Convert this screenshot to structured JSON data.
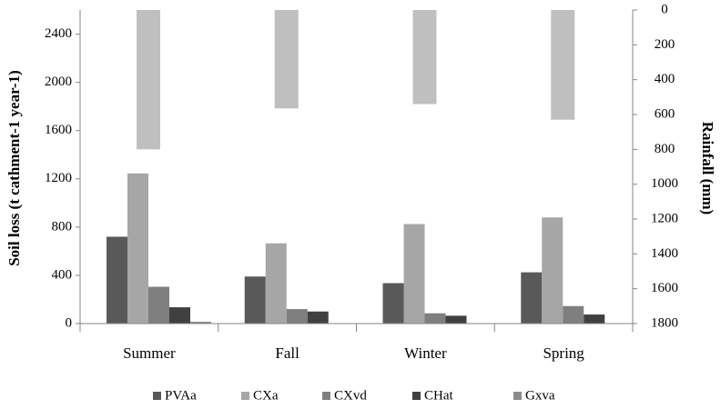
{
  "chart_data": {
    "type": "bar",
    "categories": [
      "Summer",
      "Fall",
      "Winter",
      "Spring"
    ],
    "series": [
      {
        "name": "PVAa",
        "color": "#595959",
        "values": [
          720,
          390,
          335,
          425
        ]
      },
      {
        "name": "CXa",
        "color": "#a6a6a6",
        "values": [
          1245,
          665,
          825,
          880
        ]
      },
      {
        "name": "CXvd",
        "color": "#7f7f7f",
        "values": [
          305,
          120,
          85,
          145
        ]
      },
      {
        "name": "CHat",
        "color": "#404040",
        "values": [
          135,
          100,
          65,
          75
        ]
      },
      {
        "name": "Gxva",
        "color": "#8c8c8c",
        "values": [
          15,
          0,
          0,
          0
        ]
      }
    ],
    "rainfall": {
      "name": "Rainfall",
      "color": "#bfbfbf",
      "values": [
        800,
        565,
        540,
        630
      ]
    },
    "ylabel": "Soil loss (t cathment-1 year-1)",
    "y2label": "Rainfall  (mm)",
    "ylim": [
      0,
      2600
    ],
    "y2lim": [
      0,
      1800
    ],
    "yticks": [
      0,
      400,
      800,
      1200,
      1600,
      2000,
      2400
    ],
    "y2ticks": [
      0,
      200,
      400,
      600,
      800,
      1000,
      1200,
      1400,
      1600,
      1800
    ],
    "legend_position": "bottom"
  }
}
